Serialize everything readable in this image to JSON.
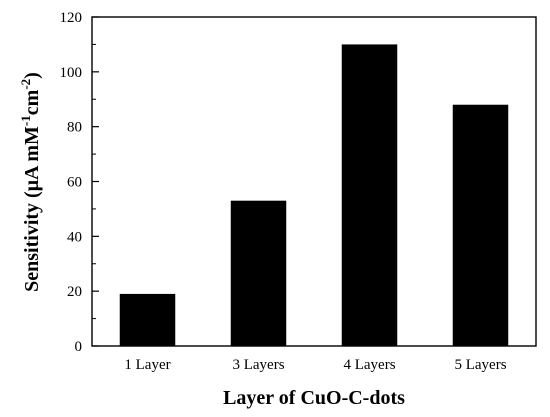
{
  "chart_data": {
    "type": "bar",
    "categories": [
      "1 Layer",
      "3 Layers",
      "4 Layers",
      "5 Layers"
    ],
    "values": [
      19,
      53,
      110,
      88
    ],
    "xlabel": "Layer of CuO-C-dots",
    "ylabel": "Sensitivity (μA mM⁻¹cm⁻²)",
    "ylabel_parts": {
      "prefix": "Sensitivity (μA mM",
      "exp1": "-1",
      "middle": "cm",
      "exp2": "-2",
      "suffix": ")"
    },
    "ylim": [
      0,
      120
    ],
    "yticks": [
      0,
      20,
      40,
      60,
      80,
      100,
      120
    ],
    "yticklabels": [
      "0",
      "20",
      "40",
      "60",
      "80",
      "100",
      "120"
    ],
    "bar_color": "#000000",
    "grid": false,
    "legend": "none"
  }
}
